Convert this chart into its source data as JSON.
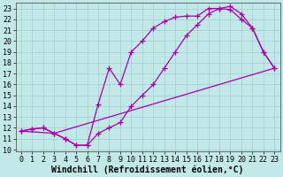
{
  "xlabel": "Windchill (Refroidissement éolien,°C)",
  "bg_color": "#c2e8e8",
  "line_color": "#aa00aa",
  "xlim": [
    -0.5,
    23.5
  ],
  "ylim": [
    9.8,
    23.5
  ],
  "xticks": [
    0,
    1,
    2,
    3,
    4,
    5,
    6,
    7,
    8,
    9,
    10,
    11,
    12,
    13,
    14,
    15,
    16,
    17,
    18,
    19,
    20,
    21,
    22,
    23
  ],
  "yticks": [
    10,
    11,
    12,
    13,
    14,
    15,
    16,
    17,
    18,
    19,
    20,
    21,
    22,
    23
  ],
  "curve1_x": [
    0,
    1,
    2,
    3,
    4,
    5,
    6,
    7,
    8,
    9,
    10,
    11,
    12,
    13,
    14,
    15,
    16,
    17,
    18,
    19,
    20,
    21,
    22,
    23
  ],
  "curve1_y": [
    11.7,
    11.9,
    12.0,
    11.5,
    11.0,
    10.4,
    10.4,
    14.2,
    17.5,
    16.0,
    19.0,
    20.0,
    21.2,
    21.8,
    22.2,
    22.3,
    22.3,
    23.0,
    23.0,
    22.9,
    22.0,
    21.2,
    19.0,
    17.5
  ],
  "curve2_x": [
    0,
    1,
    2,
    3,
    4,
    5,
    6,
    7,
    8,
    9,
    10,
    11,
    12,
    13,
    14,
    15,
    16,
    17,
    18,
    19,
    20,
    21,
    22,
    23
  ],
  "curve2_y": [
    11.7,
    11.9,
    12.0,
    11.5,
    11.0,
    10.4,
    10.4,
    11.5,
    12.0,
    12.5,
    14.0,
    15.0,
    16.0,
    17.5,
    19.0,
    20.5,
    21.5,
    22.5,
    23.0,
    23.2,
    22.5,
    21.2,
    19.0,
    17.5
  ],
  "curve3_x": [
    0,
    3,
    23
  ],
  "curve3_y": [
    11.7,
    11.5,
    17.5
  ],
  "grid_color": "#9ecece",
  "marker": "+",
  "markersize": 4,
  "linewidth": 0.9,
  "xlabel_fontsize": 7.0,
  "tick_fontsize": 6.0
}
